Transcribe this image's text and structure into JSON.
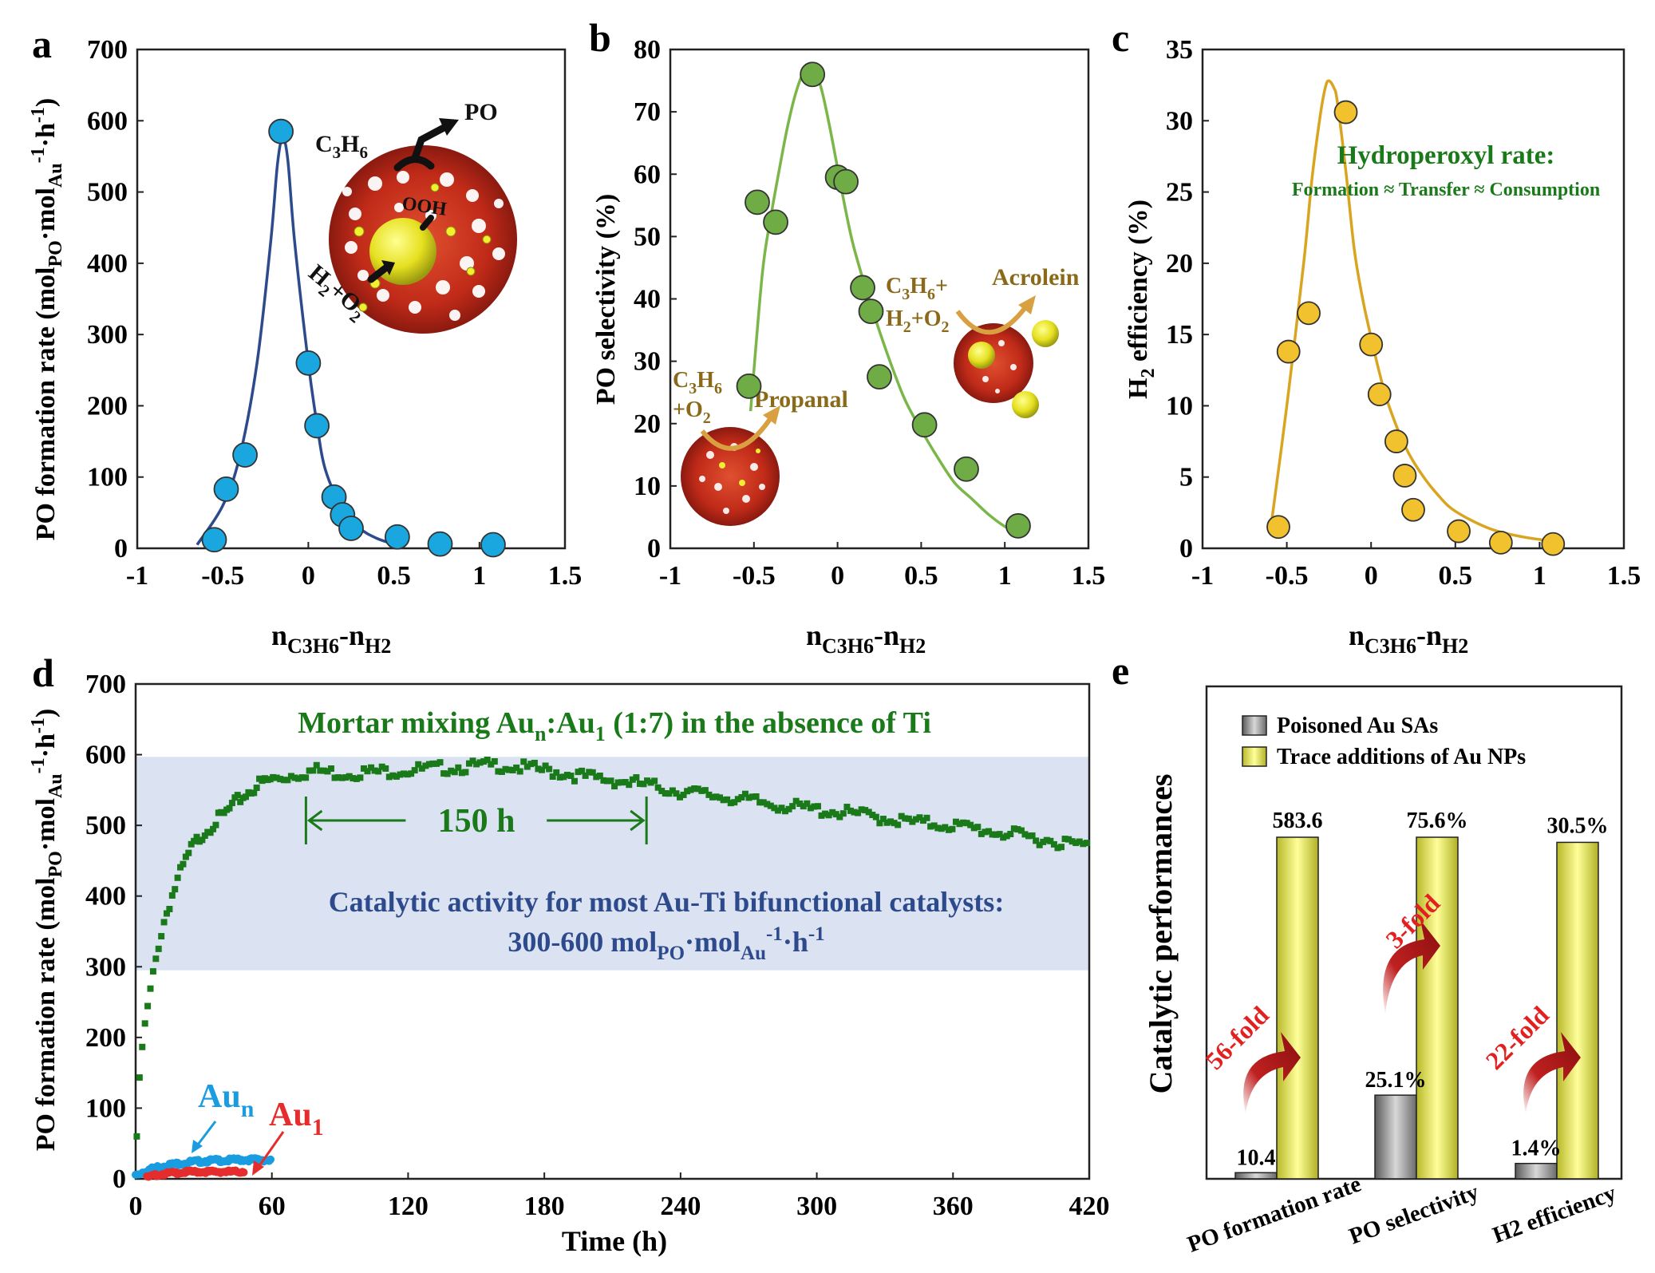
{
  "panels": {
    "a": {
      "letter": "a"
    },
    "b": {
      "letter": "b"
    },
    "c": {
      "letter": "c"
    },
    "d": {
      "letter": "d"
    },
    "e": {
      "letter": "e"
    }
  },
  "colors": {
    "a_series": "#1aa7e0",
    "a_curve": "#2c4a8c",
    "b_series": "#6fac45",
    "b_curve": "#7ab648",
    "c_series": "#f2c12e",
    "c_curve": "#d9a520",
    "d_main": "#1a7a1a",
    "d_aun": "#1a9ce0",
    "d_au1": "#e52d2d",
    "d_band": "#dbe3f2",
    "d_band_text": "#2c4a8c",
    "e_gray": "#8c8c8c",
    "e_yellow": "#eeee55",
    "fold_arrow": "#b01818",
    "fold_text": "#e32020",
    "annotation_brown": "#8a6a1a",
    "annotation_green": "#1a7a1a"
  },
  "annotations": {
    "a": {
      "c3h6": "C3H6",
      "po": "PO",
      "ooh": "OOH",
      "h2o2": "H2+O2"
    },
    "b": {
      "left1": "C3H6",
      "left2": "+O2",
      "propanal": "Propanal",
      "right1": "C3H6+",
      "right2": "H2+O2",
      "acrolein": "Acrolein"
    },
    "c": {
      "line1": "Hydroperoxyl rate:",
      "line2": "Formation ≈ Transfer ≈ Consumption"
    },
    "d": {
      "title": "Mortar mixing Aun:Au1 (1:7) in the absence of Ti",
      "duration": "150 h",
      "band1": "Catalytic activity for most Au-Ti bifunctional catalysts:",
      "band2": "300-600 molPO·molAu-1·h-1",
      "aun": "Aun",
      "au1": "Au1"
    },
    "e": {
      "fold1": "56-fold",
      "fold2": "3-fold",
      "fold3": "22-fold"
    }
  },
  "chart_data": [
    {
      "panel": "a",
      "type": "scatter",
      "xlabel": "nC3H6-nH2",
      "ylabel": "PO formation rate (molPO·molAu-1·h-1)",
      "xlim": [
        -1,
        1.5
      ],
      "ylim": [
        0,
        700
      ],
      "xticks": [
        -1,
        -0.5,
        0,
        0.5,
        1,
        1.5
      ],
      "yticks": [
        0,
        100,
        200,
        300,
        400,
        500,
        600,
        700
      ],
      "series": [
        {
          "x": [
            -0.55,
            -0.48,
            -0.37,
            -0.16,
            0.0,
            0.05,
            0.15,
            0.2,
            0.25,
            0.52,
            0.77,
            1.08
          ],
          "y": [
            12,
            83,
            131,
            585,
            260,
            172,
            72,
            47,
            28,
            16,
            6,
            5
          ]
        }
      ],
      "fit": {
        "x": [
          -0.65,
          -0.5,
          -0.4,
          -0.3,
          -0.22,
          -0.18,
          -0.15,
          -0.12,
          -0.08,
          0.0,
          0.05,
          0.1,
          0.2,
          0.3,
          0.4,
          0.5,
          0.55
        ],
        "y": [
          5,
          60,
          130,
          260,
          430,
          540,
          575,
          545,
          430,
          260,
          175,
          110,
          55,
          28,
          14,
          6,
          3
        ]
      }
    },
    {
      "panel": "b",
      "type": "scatter",
      "xlabel": "nC3H6-nH2",
      "ylabel": "PO selectivity (%)",
      "xlim": [
        -1,
        1.5
      ],
      "ylim": [
        0,
        80
      ],
      "xticks": [
        -1,
        -0.5,
        0,
        0.5,
        1,
        1.5
      ],
      "yticks": [
        0,
        10,
        20,
        30,
        40,
        50,
        60,
        70,
        80
      ],
      "series": [
        {
          "x": [
            -0.53,
            -0.48,
            -0.37,
            -0.15,
            0.0,
            0.05,
            0.15,
            0.2,
            0.25,
            0.52,
            0.77,
            1.08
          ],
          "y": [
            26,
            55.5,
            52.3,
            76,
            59.5,
            58.8,
            41.8,
            38,
            27.5,
            19.8,
            12.7,
            3.6
          ]
        }
      ],
      "fit": {
        "x": [
          -0.52,
          -0.45,
          -0.4,
          -0.35,
          -0.3,
          -0.25,
          -0.2,
          -0.15,
          -0.1,
          -0.05,
          0.0,
          0.05,
          0.1,
          0.2,
          0.3,
          0.4,
          0.5,
          0.6,
          0.7,
          0.8,
          0.9,
          1.0,
          1.06
        ],
        "y": [
          22,
          44,
          53,
          60.5,
          67.5,
          73,
          76.5,
          77,
          74,
          68,
          61,
          54,
          48,
          39,
          31,
          24,
          19,
          14.5,
          10.5,
          8,
          5.5,
          3.5,
          2.8
        ]
      }
    },
    {
      "panel": "c",
      "type": "scatter",
      "xlabel": "nC3H6-nH2",
      "ylabel": "H2 efficiency (%)",
      "xlim": [
        -1,
        1.5
      ],
      "ylim": [
        0,
        35
      ],
      "xticks": [
        -1,
        -0.5,
        0,
        0.5,
        1,
        1.5
      ],
      "yticks": [
        0,
        5,
        10,
        15,
        20,
        25,
        30,
        35
      ],
      "series": [
        {
          "x": [
            -0.55,
            -0.49,
            -0.37,
            -0.15,
            0.0,
            0.05,
            0.15,
            0.2,
            0.25,
            0.52,
            0.77,
            1.08
          ],
          "y": [
            1.5,
            13.8,
            16.5,
            30.6,
            14.3,
            10.8,
            7.5,
            5.1,
            2.7,
            1.2,
            0.4,
            0.3
          ]
        }
      ],
      "fit": {
        "x": [
          -0.6,
          -0.5,
          -0.4,
          -0.35,
          -0.3,
          -0.27,
          -0.25,
          -0.22,
          -0.2,
          -0.15,
          -0.1,
          -0.05,
          0.0,
          0.05,
          0.1,
          0.2,
          0.3,
          0.4,
          0.5,
          0.7,
          0.9,
          1.08
        ],
        "y": [
          1.0,
          10.0,
          20.0,
          26.0,
          30.5,
          32.4,
          32.8,
          32.3,
          31.3,
          26.5,
          21.0,
          17.5,
          14.8,
          12.3,
          10.2,
          7.2,
          5.2,
          3.7,
          2.6,
          1.4,
          0.8,
          0.5
        ]
      }
    },
    {
      "panel": "d",
      "type": "scatter",
      "xlabel": "Time (h)",
      "ylabel": "PO formation rate (molPO·molAu-1·h-1)",
      "xlim": [
        0,
        420
      ],
      "ylim": [
        0,
        700
      ],
      "xticks": [
        0,
        60,
        120,
        180,
        240,
        300,
        360,
        420
      ],
      "yticks": [
        0,
        100,
        200,
        300,
        400,
        500,
        600,
        700
      ],
      "band": [
        295,
        597
      ],
      "arrow_span": [
        75,
        225
      ],
      "series": [
        {
          "name": "Aun:Au1 (1:7)",
          "x": [
            0.5,
            1,
            2,
            3,
            5,
            7,
            10,
            13,
            16,
            20,
            25,
            30,
            35,
            40,
            45,
            50,
            55,
            60,
            65,
            70,
            75,
            80,
            90,
            100,
            120,
            140,
            160,
            180,
            200,
            220,
            240,
            260,
            280,
            300,
            320,
            340,
            360,
            380,
            400,
            420
          ],
          "y": [
            60,
            100,
            150,
            190,
            235,
            275,
            330,
            370,
            400,
            435,
            470,
            490,
            505,
            518,
            535,
            548,
            560,
            565,
            568,
            572,
            575,
            578,
            573,
            575,
            578,
            582,
            585,
            578,
            568,
            560,
            548,
            540,
            530,
            522,
            515,
            505,
            500,
            490,
            480,
            470
          ]
        },
        {
          "name": "Aun",
          "x": [
            0,
            5,
            10,
            15,
            20,
            25,
            30,
            35,
            40,
            45,
            50,
            55,
            60
          ],
          "y": [
            5,
            12,
            17,
            20,
            22,
            24,
            25,
            26,
            26,
            27,
            27,
            27,
            26
          ]
        },
        {
          "name": "Au1",
          "x": [
            5,
            10,
            15,
            20,
            25,
            30,
            35,
            40,
            45,
            48
          ],
          "y": [
            2,
            6,
            8,
            9,
            10,
            10,
            10,
            10,
            10,
            10
          ]
        }
      ]
    },
    {
      "panel": "e",
      "type": "bar",
      "ylabel": "Catalytic performances",
      "categories": [
        "PO formation rate",
        "PO selectivity",
        "H2 efficiency"
      ],
      "series": [
        {
          "name": "Poisoned Au SAs",
          "labels": [
            "10.4",
            "25.1%",
            "1.4%"
          ],
          "values": [
            10.4,
            25.1,
            1.4
          ],
          "heights": [
            0.018,
            0.245,
            0.045
          ]
        },
        {
          "name": "Trace additions of Au NPs",
          "labels": [
            "583.6",
            "75.6%",
            "30.5%"
          ],
          "values": [
            583.6,
            75.6,
            30.5
          ],
          "heights": [
            1.0,
            1.0,
            0.985
          ]
        }
      ]
    }
  ]
}
